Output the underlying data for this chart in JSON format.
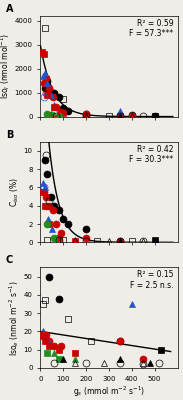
{
  "panel_A": {
    "title": "A",
    "ylabel": "Iso$_l$ (nmol mol$^{-1}$)",
    "ylim": [
      0,
      4200
    ],
    "yticks": [
      0,
      1000,
      2000,
      3000,
      4000
    ],
    "stat_text": "R² = 0.59\nF = 57.3***",
    "data": {
      "black_circle_filled": {
        "x": [
          20,
          30,
          40,
          50,
          60,
          80,
          100,
          120,
          200,
          400,
          500
        ],
        "y": [
          1200,
          1500,
          1100,
          900,
          1000,
          800,
          350,
          250,
          100,
          50,
          20
        ]
      },
      "red_circle_filled": {
        "x": [
          15,
          25,
          40,
          55,
          70,
          90,
          200,
          350,
          400
        ],
        "y": [
          1400,
          1600,
          1200,
          800,
          400,
          200,
          100,
          50,
          10
        ]
      },
      "blue_tri_filled": {
        "x": [
          10,
          20,
          30,
          45,
          60,
          350
        ],
        "y": [
          1700,
          1800,
          1400,
          900,
          500,
          250
        ]
      },
      "red_square_filled": {
        "x": [
          8,
          15,
          30,
          60,
          100,
          200
        ],
        "y": [
          2700,
          2600,
          900,
          400,
          150,
          50
        ]
      },
      "green_circle_filled": {
        "x": [
          30,
          50,
          80
        ],
        "y": [
          100,
          50,
          20
        ]
      },
      "black_square_filled": {
        "x": [
          500
        ],
        "y": [
          20
        ]
      },
      "black_tri_filled": {
        "x": [
          350,
          500
        ],
        "y": [
          10,
          10
        ]
      },
      "black_circle_open": {
        "x": [
          70,
          200,
          350,
          450
        ],
        "y": [
          20,
          10,
          5,
          5
        ]
      },
      "black_square_open": {
        "x": [
          20,
          100,
          300
        ],
        "y": [
          3700,
          750,
          10
        ]
      },
      "black_tri_open": {
        "x": [
          200,
          400
        ],
        "y": [
          5,
          5
        ]
      },
      "blue_circle_open": {
        "x": [
          15
        ],
        "y": [
          800
        ]
      },
      "red_circle_open": {
        "x": [
          25,
          60
        ],
        "y": [
          1000,
          150
        ]
      }
    },
    "curve": {
      "a": 3000,
      "b": 0.018
    }
  },
  "panel_B": {
    "title": "B",
    "ylabel": "C$_{iso}$ (%)",
    "ylim": [
      0,
      11
    ],
    "yticks": [
      0.0,
      2.0,
      4.0,
      6.0,
      8.0,
      10.0
    ],
    "stat_text": "R² = 0.42\nF = 30.3***",
    "data": {
      "black_circle_filled": {
        "x": [
          20,
          30,
          45,
          60,
          80,
          100,
          120,
          200
        ],
        "y": [
          9.0,
          7.5,
          5.0,
          4.0,
          3.5,
          2.5,
          2.0,
          1.5
        ]
      },
      "red_circle_filled": {
        "x": [
          15,
          25,
          40,
          55,
          70,
          90,
          200,
          350
        ],
        "y": [
          5.5,
          5.0,
          4.0,
          3.5,
          2.0,
          1.0,
          0.5,
          0.1
        ]
      },
      "blue_tri_filled": {
        "x": [
          10,
          20,
          35,
          50
        ],
        "y": [
          6.5,
          6.0,
          2.5,
          1.5
        ]
      },
      "red_square_filled": {
        "x": [
          10,
          20,
          40,
          80,
          150
        ],
        "y": [
          5.5,
          4.0,
          2.0,
          0.5,
          0.1
        ]
      },
      "green_circle_filled": {
        "x": [
          30,
          60
        ],
        "y": [
          2.0,
          0.5
        ]
      },
      "black_square_filled": {
        "x": [
          500
        ],
        "y": [
          0.2
        ]
      },
      "black_tri_filled": {
        "x": [
          350,
          500
        ],
        "y": [
          0.1,
          0.1
        ]
      },
      "black_circle_open": {
        "x": [
          25,
          40,
          80,
          200,
          350,
          450
        ],
        "y": [
          9.5,
          4.5,
          0.2,
          0.1,
          0.1,
          0.1
        ]
      },
      "black_square_open": {
        "x": [
          30,
          100,
          250,
          400
        ],
        "y": [
          0.2,
          0.2,
          0.1,
          0.1
        ]
      },
      "black_tri_open": {
        "x": [
          150,
          300,
          450
        ],
        "y": [
          0.2,
          0.1,
          0.1
        ]
      },
      "red_circle_open": {
        "x": [
          25
        ],
        "y": [
          4.0
        ]
      },
      "blue_circle_open": {
        "x": [
          15
        ],
        "y": [
          6.0
        ]
      }
    },
    "curve": {
      "a": 25,
      "b": 0.022
    }
  },
  "panel_C": {
    "title": "C",
    "ylabel": "Iso$_e$ (nmol m$^{-2}$ s$^{-1}$)",
    "ylim": [
      0,
      55
    ],
    "yticks": [
      0,
      10,
      20,
      30,
      40,
      50
    ],
    "stat_text": "R² = 0.15\nF = 2.5 n.s.",
    "data": {
      "black_circle_filled": {
        "x": [
          40,
          80,
          350
        ],
        "y": [
          50,
          38,
          15
        ]
      },
      "red_circle_filled": {
        "x": [
          15,
          25,
          40,
          60,
          90,
          350,
          450
        ],
        "y": [
          17,
          18,
          15,
          12,
          12,
          15,
          5
        ]
      },
      "blue_tri_filled": {
        "x": [
          10,
          20,
          35,
          400
        ],
        "y": [
          20,
          17,
          15,
          35
        ]
      },
      "red_square_filled": {
        "x": [
          10,
          20,
          40,
          80,
          150
        ],
        "y": [
          18,
          15,
          12,
          10,
          8
        ]
      },
      "green_square_filled": {
        "x": [
          30,
          80
        ],
        "y": [
          8,
          5
        ]
      },
      "black_square_filled": {
        "x": [
          530
        ],
        "y": [
          10
        ]
      },
      "black_tri_filled": {
        "x": [
          100,
          350,
          480
        ],
        "y": [
          5,
          5,
          3
        ]
      },
      "green_tri_filled": {
        "x": [
          60,
          150
        ],
        "y": [
          8,
          5
        ]
      },
      "black_circle_open": {
        "x": [
          60,
          200,
          350,
          450,
          520
        ],
        "y": [
          3,
          3,
          3,
          2,
          3
        ]
      },
      "black_square_open": {
        "x": [
          10,
          20,
          120,
          220
        ],
        "y": [
          35,
          37,
          27,
          15
        ]
      },
      "black_tri_open": {
        "x": [
          150,
          280,
          450
        ],
        "y": [
          3,
          3,
          3
        ]
      }
    },
    "curve": {
      "x0": 0,
      "x1": 570,
      "y0": 20,
      "y1": 9
    }
  },
  "xlabel": "g$_s$ (mmol m$^{-2}$ s$^{-1}$)",
  "xlim": [
    0,
    600
  ],
  "xticks": [
    0,
    100,
    200,
    300,
    400,
    500
  ],
  "bg_color": "#f0ede8",
  "marker_size": 5
}
